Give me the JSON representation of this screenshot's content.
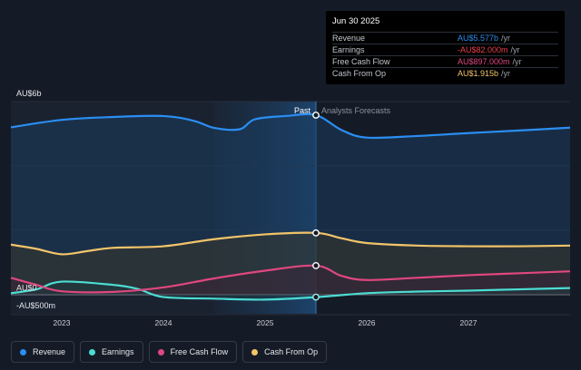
{
  "chart_data": {
    "type": "area",
    "title": "",
    "y_axis": {
      "unit_prefix": "AU$",
      "ylim": [
        -0.6,
        6.0
      ],
      "top_label": "AU$6b",
      "zero_label": "AU$0",
      "bottom_label": "-AU$500m"
    },
    "x_axis": {
      "xlim": [
        2022.5,
        2028.0
      ],
      "ticks": [
        {
          "value": 2023,
          "label": "2023"
        },
        {
          "value": 2024,
          "label": "2024"
        },
        {
          "value": 2025,
          "label": "2025"
        },
        {
          "value": 2026,
          "label": "2026"
        },
        {
          "value": 2027,
          "label": "2027"
        }
      ]
    },
    "divider": {
      "x": 2025.5,
      "past_label": "Past",
      "forecast_label": "Analysts Forecasts"
    },
    "highlight_range": [
      2024.5,
      2025.5
    ],
    "series": [
      {
        "name": "Revenue",
        "color": "#2b8ef2",
        "points": [
          [
            2022.5,
            5.2
          ],
          [
            2023.0,
            5.43
          ],
          [
            2023.5,
            5.52
          ],
          [
            2024.0,
            5.55
          ],
          [
            2024.3,
            5.4
          ],
          [
            2024.5,
            5.18
          ],
          [
            2024.75,
            5.14
          ],
          [
            2024.9,
            5.45
          ],
          [
            2025.2,
            5.55
          ],
          [
            2025.5,
            5.577
          ],
          [
            2025.75,
            5.12
          ],
          [
            2026.0,
            4.88
          ],
          [
            2026.5,
            4.93
          ],
          [
            2027.0,
            5.02
          ],
          [
            2027.5,
            5.1
          ],
          [
            2028.0,
            5.19
          ]
        ]
      },
      {
        "name": "Earnings",
        "color": "#4cdcd3",
        "points": [
          [
            2022.5,
            0.04
          ],
          [
            2022.75,
            0.16
          ],
          [
            2023.0,
            0.4
          ],
          [
            2023.5,
            0.3
          ],
          [
            2023.75,
            0.17
          ],
          [
            2024.0,
            -0.08
          ],
          [
            2024.5,
            -0.13
          ],
          [
            2025.0,
            -0.16
          ],
          [
            2025.5,
            -0.082
          ],
          [
            2026.0,
            0.04
          ],
          [
            2026.5,
            0.09
          ],
          [
            2027.0,
            0.12
          ],
          [
            2027.5,
            0.16
          ],
          [
            2028.0,
            0.2
          ]
        ]
      },
      {
        "name": "Free Cash Flow",
        "color": "#e0477f",
        "points": [
          [
            2022.5,
            0.52
          ],
          [
            2022.75,
            0.3
          ],
          [
            2023.0,
            0.1
          ],
          [
            2023.5,
            0.08
          ],
          [
            2024.0,
            0.22
          ],
          [
            2024.5,
            0.5
          ],
          [
            2025.0,
            0.74
          ],
          [
            2025.5,
            0.897
          ],
          [
            2025.75,
            0.58
          ],
          [
            2026.0,
            0.45
          ],
          [
            2026.5,
            0.52
          ],
          [
            2027.0,
            0.6
          ],
          [
            2027.5,
            0.66
          ],
          [
            2028.0,
            0.72
          ]
        ]
      },
      {
        "name": "Cash From Op",
        "color": "#f2c46a",
        "points": [
          [
            2022.5,
            1.55
          ],
          [
            2022.75,
            1.42
          ],
          [
            2023.0,
            1.25
          ],
          [
            2023.25,
            1.35
          ],
          [
            2023.5,
            1.45
          ],
          [
            2024.0,
            1.5
          ],
          [
            2024.5,
            1.72
          ],
          [
            2025.0,
            1.87
          ],
          [
            2025.5,
            1.915
          ],
          [
            2025.75,
            1.75
          ],
          [
            2026.0,
            1.6
          ],
          [
            2026.5,
            1.52
          ],
          [
            2027.0,
            1.5
          ],
          [
            2027.5,
            1.5
          ],
          [
            2028.0,
            1.52
          ]
        ]
      }
    ]
  },
  "tooltip": {
    "date": "Jun 30 2025",
    "rows": [
      {
        "label": "Revenue",
        "value": "AU$5.577b",
        "unit": "/yr",
        "color": "#2b8ef2"
      },
      {
        "label": "Earnings",
        "value": "-AU$82.000m",
        "unit": "/yr",
        "color": "#e8414a"
      },
      {
        "label": "Free Cash Flow",
        "value": "AU$897.000m",
        "unit": "/yr",
        "color": "#e0477f"
      },
      {
        "label": "Cash From Op",
        "value": "AU$1.915b",
        "unit": "/yr",
        "color": "#f2c46a"
      }
    ]
  },
  "legend": [
    {
      "label": "Revenue",
      "color": "#2b8ef2"
    },
    {
      "label": "Earnings",
      "color": "#4cdcd3"
    },
    {
      "label": "Free Cash Flow",
      "color": "#e0477f"
    },
    {
      "label": "Cash From Op",
      "color": "#f2c46a"
    }
  ]
}
